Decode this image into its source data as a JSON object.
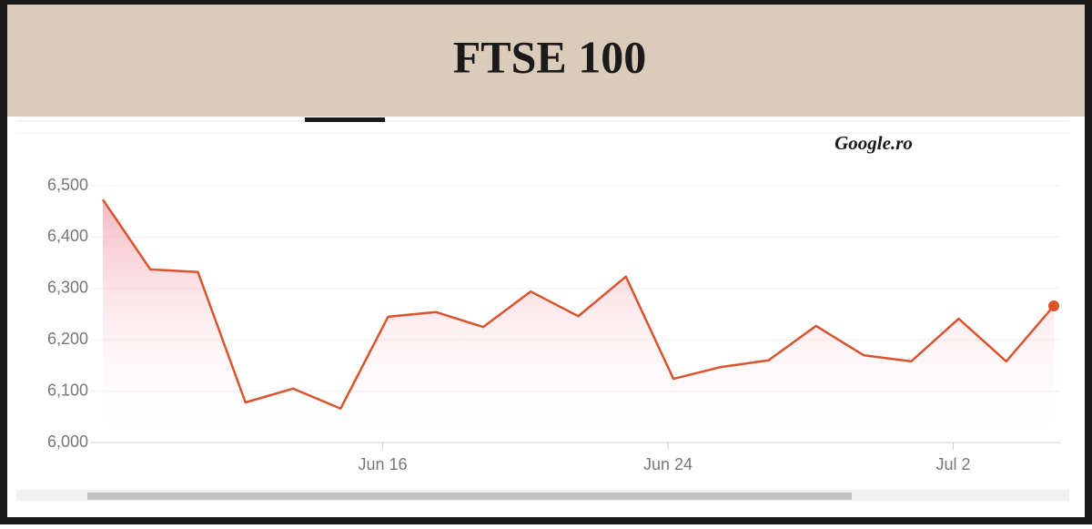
{
  "chart_data": {
    "type": "line",
    "title": "FTSE 100",
    "annotation": "Google.ro",
    "categories": [
      null,
      null,
      null,
      null,
      null,
      null,
      "Jun 16",
      null,
      null,
      null,
      null,
      null,
      "Jun 24",
      null,
      null,
      null,
      null,
      null,
      "Jul 2",
      null,
      null
    ],
    "values": [
      6473,
      6337,
      6332,
      6078,
      6105,
      6066,
      6245,
      6254,
      6225,
      6294,
      6246,
      6323,
      6124,
      6147,
      6160,
      6227,
      6170,
      6158,
      6241,
      6158,
      6266
    ],
    "color": "#d9532c",
    "ylim": [
      6000,
      6500
    ],
    "yticks": [
      {
        "value": 6000,
        "label": "6,000"
      },
      {
        "value": 6100,
        "label": "6,100"
      },
      {
        "value": 6200,
        "label": "6,200"
      },
      {
        "value": 6300,
        "label": "6,300"
      },
      {
        "value": 6400,
        "label": "6,400"
      },
      {
        "value": 6500,
        "label": "6,500"
      }
    ],
    "grid": true
  }
}
